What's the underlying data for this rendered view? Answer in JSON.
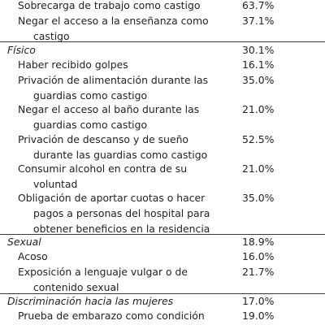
{
  "rows": [
    {
      "lines": [
        "Sobrecarga de trabajo como castigo"
      ],
      "value": "63.7%"
    },
    {
      "lines": [
        "Negar el acceso a la enseñanza como",
        "castigo"
      ],
      "value": "37.1%"
    },
    {
      "lines": [
        "Físico"
      ],
      "value": "30.1%"
    },
    {
      "lines": [
        "Haber recibido golpes"
      ],
      "value": "16.1%"
    },
    {
      "lines": [
        "Privación de alimentación durante las",
        "guardias como castigo"
      ],
      "value": "35.0%"
    },
    {
      "lines": [
        "Negar el acceso al baño durante las",
        "guardias como castigo"
      ],
      "value": "21.0%"
    },
    {
      "lines": [
        "Privación de descanso y de sueño",
        "durante las guardias como castigo"
      ],
      "value": "52.5%"
    },
    {
      "lines": [
        "Consumir alcohol en contra de su",
        "voluntad"
      ],
      "value": "21.0%"
    },
    {
      "lines": [
        "Obligación de aportar cuotas o hacer",
        "pagos a personas del hospital para",
        "obtener beneficios en la residencia"
      ],
      "value": "35.0%"
    },
    {
      "lines": [
        "Sexual"
      ],
      "value": "18.9%"
    },
    {
      "lines": [
        "Acoso"
      ],
      "value": "16.0%"
    },
    {
      "lines": [
        "Exposición a lenguaje vulgar o de",
        "contenido sexual"
      ],
      "value": "21.7%"
    },
    {
      "lines": [
        "Discriminación hacia las mujeres"
      ],
      "value": "17.0%"
    },
    {
      "lines": [
        "Prueba de embarazo como condición"
      ],
      "value": "19.0%"
    }
  ]
}
